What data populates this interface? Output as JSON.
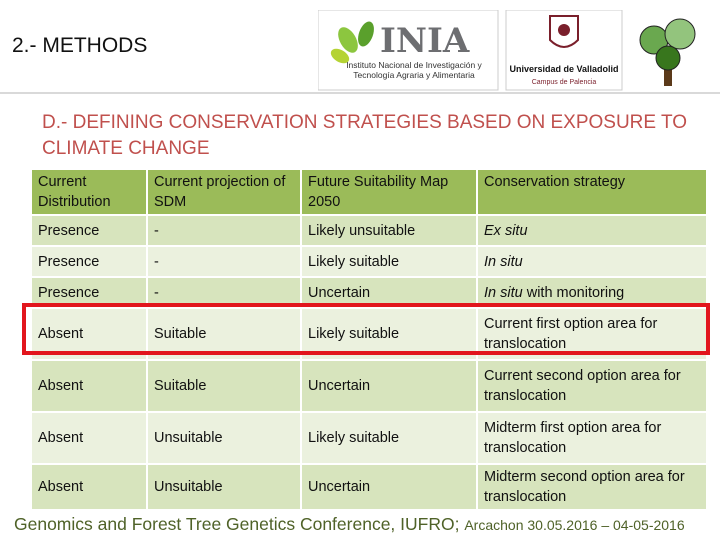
{
  "header": {
    "title": "2.- METHODS",
    "logos": {
      "inia": "INIA",
      "inia_name": "Instituto Nacional de Investigación y Tecnología Agraria y Alimentaria",
      "university": "Universidad de Valladolid",
      "campus": "Campus de Palencia"
    }
  },
  "subtitle": "D.- DEFINING CONSERVATION STRATEGIES BASED ON EXPOSURE TO CLIMATE CHANGE",
  "table": {
    "columns": [
      "Current Distribution",
      "Current projection of SDM",
      "Future Suitability Map 2050",
      "Conservation strategy"
    ],
    "rows": [
      [
        "Presence",
        "-",
        "Likely unsuitable",
        {
          "emphasis": "Ex situ"
        }
      ],
      [
        "Presence",
        "-",
        "Likely suitable",
        {
          "emphasis": "In situ"
        }
      ],
      [
        "Presence",
        "-",
        "Uncertain",
        {
          "emphasis": "In situ",
          "rest": "with monitoring"
        }
      ],
      [
        "Absent",
        "Suitable",
        "Likely suitable",
        "Current first option area for translocation"
      ],
      [
        "Absent",
        "Suitable",
        "Uncertain",
        "Current second option area for translocation"
      ],
      [
        "Absent",
        "Unsuitable",
        "Likely suitable",
        "Midterm first option area for translocation"
      ],
      [
        "Absent",
        "Unsuitable",
        "Uncertain",
        "Midterm second option area for translocation"
      ]
    ]
  },
  "footer": {
    "conference": "Genomics and Forest Tree Genetics Conference, IUFRO;",
    "place_date": "Arcachon 30.05.2016 – 04-05-2016"
  }
}
